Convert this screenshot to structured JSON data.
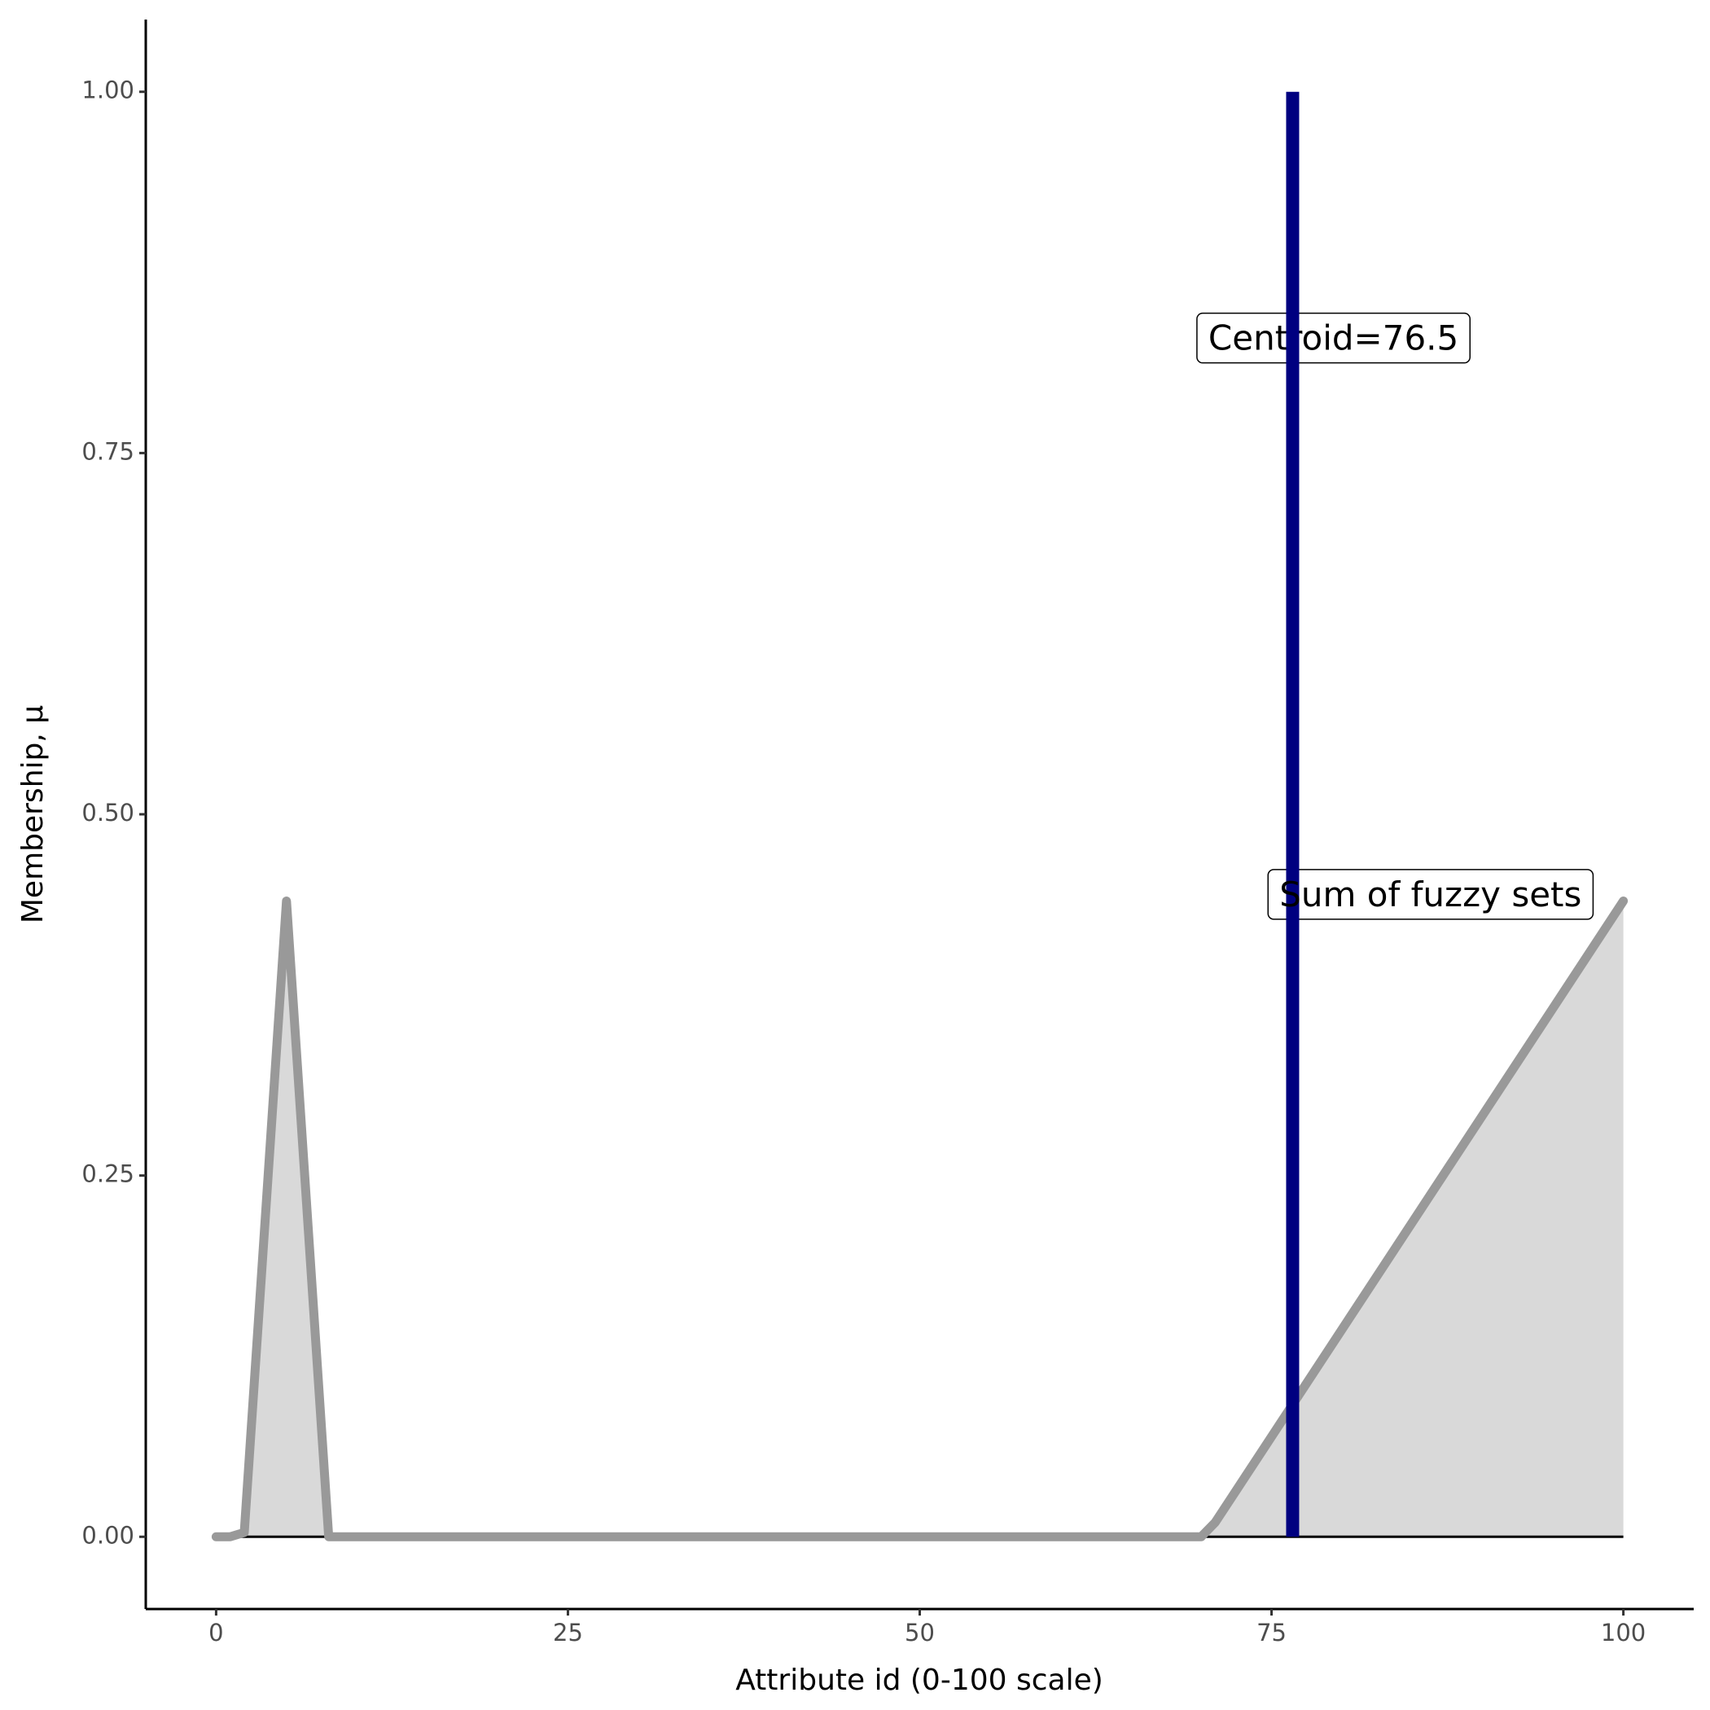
{
  "chart_data": {
    "type": "area",
    "x_label": "Attribute id (0-100 scale)",
    "y_label": "Membership, μ",
    "x": [
      0,
      1,
      2,
      5,
      8,
      70,
      71,
      100
    ],
    "values": [
      0,
      0,
      0.003,
      0.44,
      0,
      0,
      0.01,
      0.44
    ],
    "color": "#999999",
    "fill": "#d9d9d9",
    "hline": {
      "y": 0,
      "xmin": 0,
      "xmax": 100,
      "color": "#000000"
    },
    "vline": {
      "x": 76.5,
      "ymin": 0,
      "ymax": 1,
      "color": "#000080"
    },
    "annotations": [
      "Centroid=76.5",
      "Sum of fuzzy sets"
    ],
    "xlim": [
      -5,
      105
    ],
    "xticks": [
      0,
      25,
      50,
      75,
      100
    ],
    "ylim": [
      -0.05,
      1.05
    ],
    "yticks": [
      {
        "value": 0,
        "label": "0.00"
      },
      {
        "value": 0.25,
        "label": "0.25"
      },
      {
        "value": 0.5,
        "label": "0.50"
      },
      {
        "value": 0.75,
        "label": "0.75"
      },
      {
        "value": 1,
        "label": "1.00"
      }
    ],
    "grid": false
  }
}
